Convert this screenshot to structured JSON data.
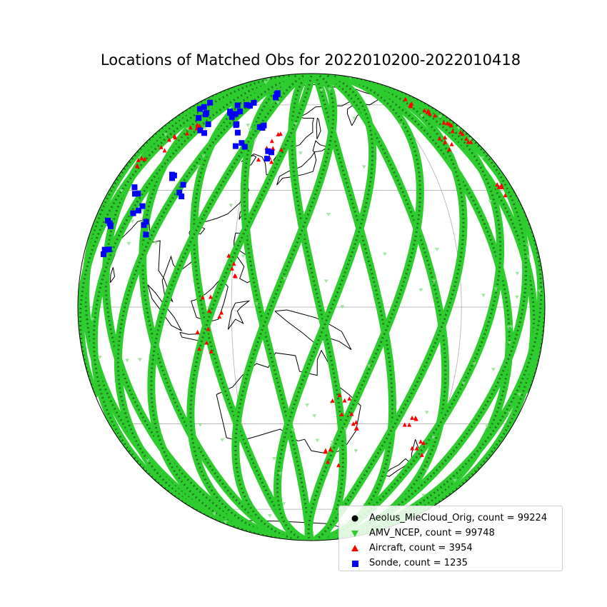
{
  "figure": {
    "title": "Locations of Matched Obs for 2022010200-2022010418"
  },
  "map": {
    "projection": "orthographic",
    "center_lon": 140,
    "center_lat": 0,
    "gridlines": true,
    "coastlines": true
  },
  "legend": {
    "placement": "bottom-right",
    "entries": [
      {
        "label": "Aeolus_MieCloud_Orig, count = 99224",
        "marker": "circle",
        "color": "#000000"
      },
      {
        "label": "AMV_NCEP, count = 99748",
        "marker": "triangle-down",
        "color": "#2ecc2e"
      },
      {
        "label": "Aircraft, count = 3954",
        "marker": "triangle-up",
        "color": "#ff0000"
      },
      {
        "label": "Sonde, count = 1235",
        "marker": "square",
        "color": "#0000ff"
      }
    ]
  },
  "chart_data": {
    "type": "scatter",
    "title": "Locations of Matched Obs for 2022010200-2022010418",
    "series": [
      {
        "name": "Aeolus_MieCloud_Orig",
        "count": 99224,
        "color": "#000000",
        "marker": "circle"
      },
      {
        "name": "AMV_NCEP",
        "count": 99748,
        "color": "#2ecc2e",
        "marker": "triangle-down"
      },
      {
        "name": "Aircraft",
        "count": 3954,
        "color": "#ff0000",
        "marker": "triangle-up"
      },
      {
        "name": "Sonde",
        "count": 1235,
        "color": "#0000ff",
        "marker": "square"
      }
    ]
  }
}
